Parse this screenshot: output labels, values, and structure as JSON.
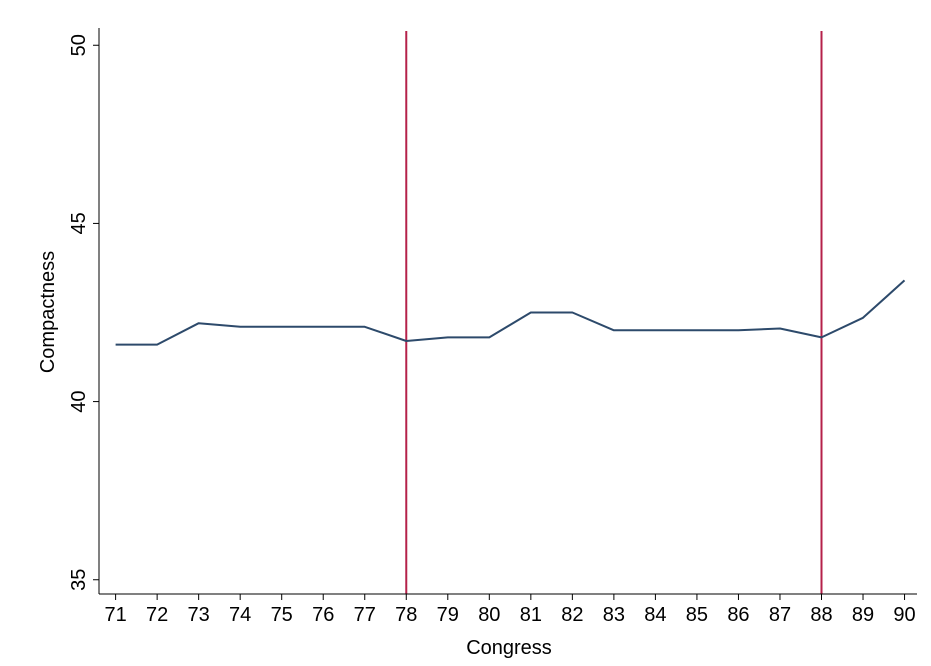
{
  "chart_data": {
    "type": "line",
    "title": "",
    "xlabel": "Congress",
    "ylabel": "Compactness",
    "x": [
      71,
      72,
      73,
      74,
      75,
      76,
      77,
      78,
      79,
      80,
      81,
      82,
      83,
      84,
      85,
      86,
      87,
      88,
      89,
      90
    ],
    "series": [
      {
        "values": [
          41.6,
          41.6,
          42.2,
          42.1,
          42.1,
          42.1,
          42.1,
          41.7,
          41.8,
          41.8,
          42.5,
          42.5,
          42.0,
          42.0,
          42.0,
          42.0,
          42.05,
          41.8,
          42.35,
          43.4
        ]
      }
    ],
    "reference_lines_x": [
      78,
      88
    ],
    "xlim": [
      70.6,
      90.3
    ],
    "ylim": [
      34.6,
      50.4
    ],
    "yticks": [
      35,
      40,
      45,
      50
    ],
    "xticks": [
      71,
      72,
      73,
      74,
      75,
      76,
      77,
      78,
      79,
      80,
      81,
      82,
      83,
      84,
      85,
      86,
      87,
      88,
      89,
      90
    ],
    "grid": false,
    "colors": {
      "series": "#2d4a6b",
      "reference": "#b5214a",
      "axis": "#000000"
    }
  }
}
